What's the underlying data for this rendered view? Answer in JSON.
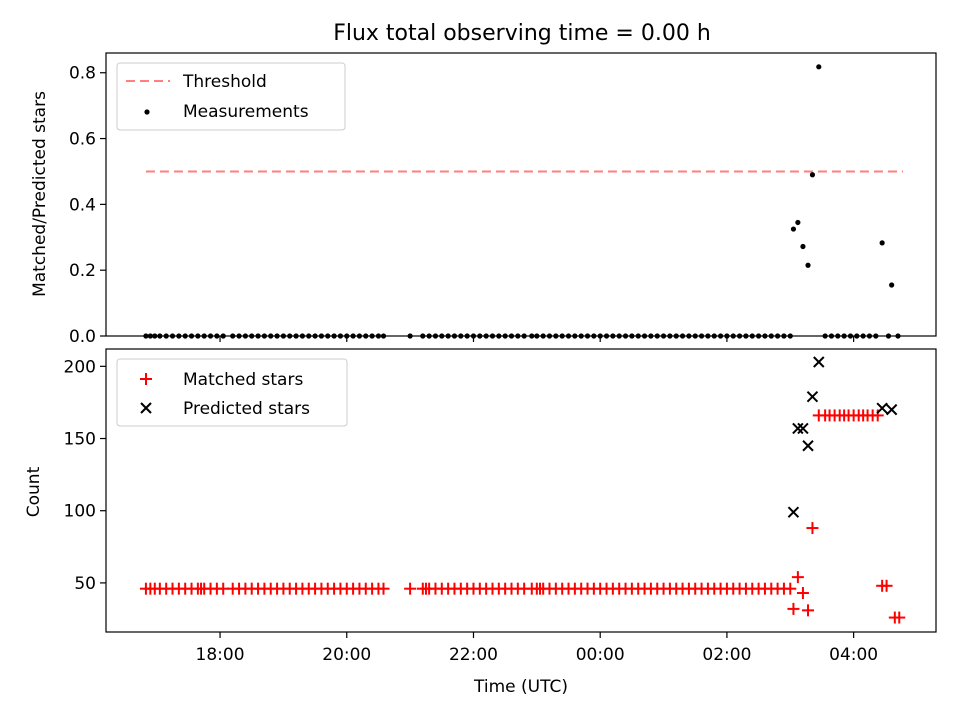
{
  "title": "Flux total observing time = 0.00 h",
  "chart_data": [
    {
      "type": "scatter",
      "ylabel": "Matched/Predicted stars",
      "ylim": [
        0,
        0.86
      ],
      "xlim_hours": [
        16.2,
        29.3
      ],
      "yticks": [
        0.0,
        0.2,
        0.4,
        0.6,
        0.8
      ],
      "ytick_labels": [
        "0.0",
        "0.2",
        "0.4",
        "0.6",
        "0.8"
      ],
      "legend_position": "top-left",
      "threshold": {
        "name": "Threshold",
        "value": 0.5,
        "x_range": [
          16.83,
          28.78
        ],
        "color": "#ff7f7f"
      },
      "measurements": {
        "name": "Measurements",
        "color": "#000000",
        "zero_x": [
          16.83,
          16.9,
          16.97,
          17.05,
          17.15,
          17.25,
          17.35,
          17.45,
          17.55,
          17.65,
          17.75,
          17.85,
          17.95,
          18.05,
          18.2,
          18.3,
          18.4,
          18.5,
          18.6,
          18.7,
          18.8,
          18.9,
          19.0,
          19.1,
          19.2,
          19.3,
          19.4,
          19.5,
          19.6,
          19.7,
          19.8,
          19.9,
          20.0,
          20.1,
          20.2,
          20.3,
          20.4,
          20.5,
          20.58,
          21.0,
          21.2,
          21.3,
          21.4,
          21.5,
          21.6,
          21.7,
          21.8,
          21.9,
          22.0,
          22.1,
          22.2,
          22.3,
          22.4,
          22.5,
          22.6,
          22.7,
          22.8,
          22.92,
          23.0,
          23.1,
          23.2,
          23.3,
          23.4,
          23.5,
          23.6,
          23.7,
          23.8,
          23.9,
          24.0,
          24.1,
          24.2,
          24.3,
          24.4,
          24.5,
          24.6,
          24.7,
          24.8,
          24.9,
          25.0,
          25.1,
          25.2,
          25.3,
          25.4,
          25.5,
          25.6,
          25.7,
          25.8,
          25.9,
          26.0,
          26.1,
          26.2,
          26.3,
          26.4,
          26.5,
          26.6,
          26.7,
          26.8,
          26.9,
          27.0,
          27.55,
          27.65,
          27.75,
          27.85,
          27.95,
          28.05,
          28.15,
          28.25,
          28.35,
          28.55,
          28.7
        ],
        "x": [
          27.05,
          27.12,
          27.2,
          27.28,
          27.35,
          27.45,
          28.45,
          28.6
        ],
        "y": [
          0.325,
          0.345,
          0.272,
          0.215,
          0.49,
          0.818,
          0.283,
          0.155
        ]
      }
    },
    {
      "type": "scatter",
      "ylabel": "Count",
      "xlabel": "Time (UTC)",
      "ylim": [
        16,
        212
      ],
      "xlim_hours": [
        16.2,
        29.3
      ],
      "yticks": [
        50,
        100,
        150,
        200
      ],
      "ytick_labels": [
        "50",
        "100",
        "150",
        "200"
      ],
      "xticks_hours": [
        18,
        20,
        22,
        24,
        26,
        28
      ],
      "xtick_labels": [
        "18:00",
        "20:00",
        "22:00",
        "00:00",
        "02:00",
        "04:00"
      ],
      "legend_position": "top-left",
      "series": [
        {
          "name": "Matched stars",
          "marker": "plus",
          "color": "#ff0000",
          "x46": [
            16.83,
            16.9,
            16.97,
            17.05,
            17.15,
            17.25,
            17.35,
            17.45,
            17.55,
            17.65,
            17.7,
            17.75,
            17.85,
            17.95,
            18.05,
            18.2,
            18.3,
            18.4,
            18.5,
            18.6,
            18.7,
            18.8,
            18.9,
            19.0,
            19.1,
            19.2,
            19.3,
            19.4,
            19.5,
            19.6,
            19.7,
            19.8,
            19.9,
            20.0,
            20.1,
            20.2,
            20.3,
            20.4,
            20.5,
            20.58,
            21.0,
            21.2,
            21.25,
            21.3,
            21.4,
            21.5,
            21.6,
            21.7,
            21.8,
            21.9,
            22.0,
            22.1,
            22.2,
            22.3,
            22.4,
            22.5,
            22.6,
            22.7,
            22.8,
            22.92,
            23.0,
            23.05,
            23.1,
            23.2,
            23.3,
            23.4,
            23.5,
            23.6,
            23.7,
            23.8,
            23.9,
            24.0,
            24.1,
            24.2,
            24.3,
            24.4,
            24.5,
            24.6,
            24.7,
            24.8,
            24.9,
            25.0,
            25.1,
            25.2,
            25.3,
            25.4,
            25.5,
            25.6,
            25.7,
            25.8,
            25.9,
            26.0,
            26.1,
            26.2,
            26.3,
            26.4,
            26.5,
            26.6,
            26.7,
            26.8,
            26.9,
            27.0
          ],
          "x": [
            27.05,
            27.12,
            27.2,
            27.28,
            27.35,
            27.45,
            27.55,
            27.62,
            27.7,
            27.78,
            27.85,
            27.92,
            28.0,
            28.08,
            28.15,
            28.22,
            28.3,
            28.38,
            28.45,
            28.52,
            28.65,
            28.72
          ],
          "y": [
            32,
            54,
            43,
            31,
            88,
            166,
            166,
            166,
            166,
            166,
            166,
            166,
            166,
            166,
            166,
            166,
            166,
            166,
            48,
            48,
            26,
            26
          ]
        },
        {
          "name": "Predicted stars",
          "marker": "x",
          "color": "#000000",
          "x": [
            27.05,
            27.12,
            27.2,
            27.28,
            27.35,
            27.45,
            28.45,
            28.6
          ],
          "y": [
            99,
            157,
            157,
            145,
            179,
            203,
            171,
            170
          ]
        }
      ]
    }
  ]
}
